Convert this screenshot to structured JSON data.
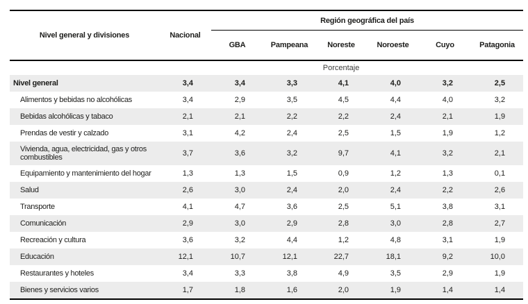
{
  "table": {
    "division_header": "Nivel general y divisiones",
    "nacional_header": "Nacional",
    "region_group_header": "Región geográfica del país",
    "region_headers": [
      "GBA",
      "Pampeana",
      "Noreste",
      "Noroeste",
      "Cuyo",
      "Patagonia"
    ],
    "unit_label": "Porcentaje",
    "rows": [
      {
        "label": "Nivel general",
        "values": [
          "3,4",
          "3,4",
          "3,3",
          "4,1",
          "4,0",
          "3,2",
          "2,5"
        ]
      },
      {
        "label": "Alimentos y bebidas no alcohólicas",
        "values": [
          "3,4",
          "2,9",
          "3,5",
          "4,5",
          "4,4",
          "4,0",
          "3,2"
        ]
      },
      {
        "label": "Bebidas alcohólicas y tabaco",
        "values": [
          "2,1",
          "2,1",
          "2,2",
          "2,2",
          "2,4",
          "2,1",
          "1,9"
        ]
      },
      {
        "label": "Prendas de vestir y calzado",
        "values": [
          "3,1",
          "4,2",
          "2,4",
          "2,5",
          "1,5",
          "1,9",
          "1,2"
        ]
      },
      {
        "label": "Vivienda, agua, electricidad, gas y otros combustibles",
        "values": [
          "3,7",
          "3,6",
          "3,2",
          "9,7",
          "4,1",
          "3,2",
          "2,1"
        ]
      },
      {
        "label": "Equipamiento y mantenimiento del hogar",
        "values": [
          "1,3",
          "1,3",
          "1,5",
          "0,9",
          "1,2",
          "1,3",
          "0,1"
        ]
      },
      {
        "label": "Salud",
        "values": [
          "2,6",
          "3,0",
          "2,4",
          "2,0",
          "2,4",
          "2,2",
          "2,6"
        ]
      },
      {
        "label": "Transporte",
        "values": [
          "4,1",
          "4,7",
          "3,6",
          "2,5",
          "5,1",
          "3,8",
          "3,1"
        ]
      },
      {
        "label": "Comunicación",
        "values": [
          "2,9",
          "3,0",
          "2,9",
          "2,8",
          "3,0",
          "2,8",
          "2,7"
        ]
      },
      {
        "label": "Recreación y cultura",
        "values": [
          "3,6",
          "3,2",
          "4,4",
          "1,2",
          "4,8",
          "3,1",
          "1,9"
        ]
      },
      {
        "label": "Educación",
        "values": [
          "12,1",
          "10,7",
          "12,1",
          "22,7",
          "18,1",
          "9,2",
          "10,0"
        ]
      },
      {
        "label": "Restaurantes y hoteles",
        "values": [
          "3,4",
          "3,3",
          "3,8",
          "4,9",
          "3,5",
          "2,9",
          "1,9"
        ]
      },
      {
        "label": "Bienes y servicios varios",
        "values": [
          "1,7",
          "1,8",
          "1,6",
          "2,0",
          "1,9",
          "1,4",
          "1,4"
        ]
      }
    ]
  },
  "chart_data": {
    "type": "table",
    "title": "Región geográfica del país",
    "unit": "Porcentaje",
    "columns": [
      "Nivel general y divisiones",
      "Nacional",
      "GBA",
      "Pampeana",
      "Noreste",
      "Noroeste",
      "Cuyo",
      "Patagonia"
    ],
    "rows": [
      [
        "Nivel general",
        3.4,
        3.4,
        3.3,
        4.1,
        4.0,
        3.2,
        2.5
      ],
      [
        "Alimentos y bebidas no alcohólicas",
        3.4,
        2.9,
        3.5,
        4.5,
        4.4,
        4.0,
        3.2
      ],
      [
        "Bebidas alcohólicas y tabaco",
        2.1,
        2.1,
        2.2,
        2.2,
        2.4,
        2.1,
        1.9
      ],
      [
        "Prendas de vestir y calzado",
        3.1,
        4.2,
        2.4,
        2.5,
        1.5,
        1.9,
        1.2
      ],
      [
        "Vivienda, agua, electricidad, gas y otros combustibles",
        3.7,
        3.6,
        3.2,
        9.7,
        4.1,
        3.2,
        2.1
      ],
      [
        "Equipamiento y mantenimiento del hogar",
        1.3,
        1.3,
        1.5,
        0.9,
        1.2,
        1.3,
        0.1
      ],
      [
        "Salud",
        2.6,
        3.0,
        2.4,
        2.0,
        2.4,
        2.2,
        2.6
      ],
      [
        "Transporte",
        4.1,
        4.7,
        3.6,
        2.5,
        5.1,
        3.8,
        3.1
      ],
      [
        "Comunicación",
        2.9,
        3.0,
        2.9,
        2.8,
        3.0,
        2.8,
        2.7
      ],
      [
        "Recreación y cultura",
        3.6,
        3.2,
        4.4,
        1.2,
        4.8,
        3.1,
        1.9
      ],
      [
        "Educación",
        12.1,
        10.7,
        12.1,
        22.7,
        18.1,
        9.2,
        10.0
      ],
      [
        "Restaurantes y hoteles",
        3.4,
        3.3,
        3.8,
        4.9,
        3.5,
        2.9,
        1.9
      ],
      [
        "Bienes y servicios varios",
        1.7,
        1.8,
        1.6,
        2.0,
        1.9,
        1.4,
        1.4
      ]
    ]
  },
  "colors": {
    "stripe": "#ececec",
    "line": "#000000",
    "text": "#1d1d1b"
  }
}
